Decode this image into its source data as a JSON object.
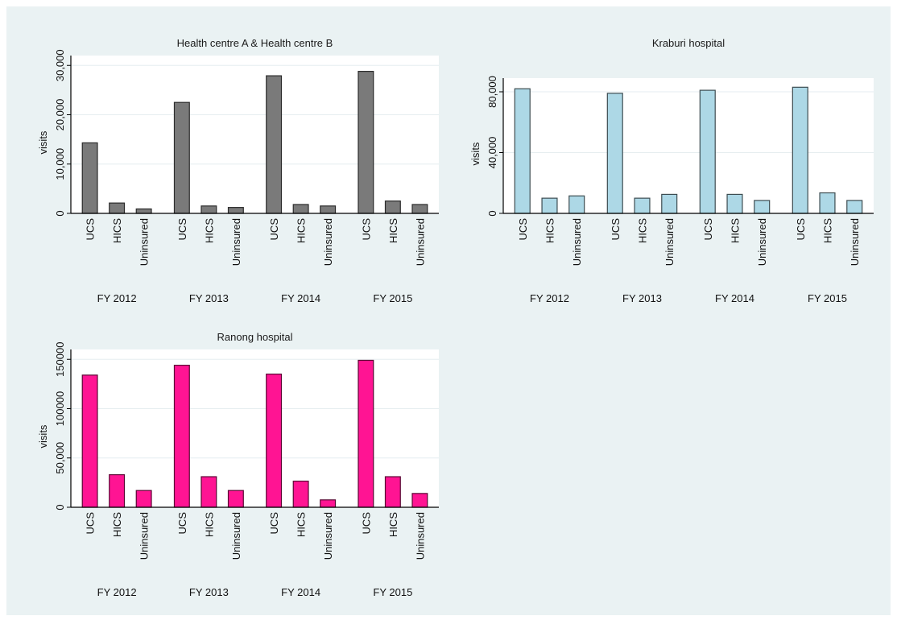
{
  "chart_data": [
    {
      "type": "bar",
      "title": "Health centre A & Health centre B",
      "ylabel": "visits",
      "ylim": [
        0,
        32000
      ],
      "yticks": [
        0,
        10000,
        20000,
        30000
      ],
      "ytick_labels": [
        "0",
        "10,000",
        "20,000",
        "30,000"
      ],
      "grid": true,
      "bar_color": "#7a7a7a",
      "groups": [
        "FY 2012",
        "FY 2013",
        "FY 2014",
        "FY 2015"
      ],
      "categories": [
        "UCS",
        "HICS",
        "Uninsured"
      ],
      "values": [
        [
          14300,
          2100,
          900
        ],
        [
          22500,
          1500,
          1200
        ],
        [
          27900,
          1800,
          1500
        ],
        [
          28800,
          2500,
          1800
        ]
      ]
    },
    {
      "type": "bar",
      "title": "Kraburi hospital",
      "ylabel": "visits",
      "ylim": [
        0,
        89000
      ],
      "yticks": [
        0,
        40000,
        80000
      ],
      "ytick_labels": [
        "0",
        "40,000",
        "80,000"
      ],
      "grid": true,
      "bar_color": "#add8e6",
      "groups": [
        "FY 2012",
        "FY 2013",
        "FY 2014",
        "FY 2015"
      ],
      "categories": [
        "UCS",
        "HICS",
        "Uninsured"
      ],
      "values": [
        [
          82000,
          10000,
          11500
        ],
        [
          79000,
          10000,
          12500
        ],
        [
          81000,
          12500,
          8500
        ],
        [
          83000,
          13500,
          8500
        ]
      ]
    },
    {
      "type": "bar",
      "title": "Ranong hospital",
      "ylabel": "visits",
      "ylim": [
        0,
        160000
      ],
      "yticks": [
        0,
        50000,
        100000,
        150000
      ],
      "ytick_labels": [
        "0",
        "50,000",
        "100000",
        "150000"
      ],
      "grid": true,
      "bar_color": "#ff1493",
      "groups": [
        "FY 2012",
        "FY 2013",
        "FY 2014",
        "FY 2015"
      ],
      "categories": [
        "UCS",
        "HICS",
        "Uninsured"
      ],
      "values": [
        [
          134000,
          33000,
          17000
        ],
        [
          144000,
          31000,
          17000
        ],
        [
          135000,
          26500,
          7500
        ],
        [
          149000,
          31000,
          14000
        ]
      ]
    }
  ]
}
